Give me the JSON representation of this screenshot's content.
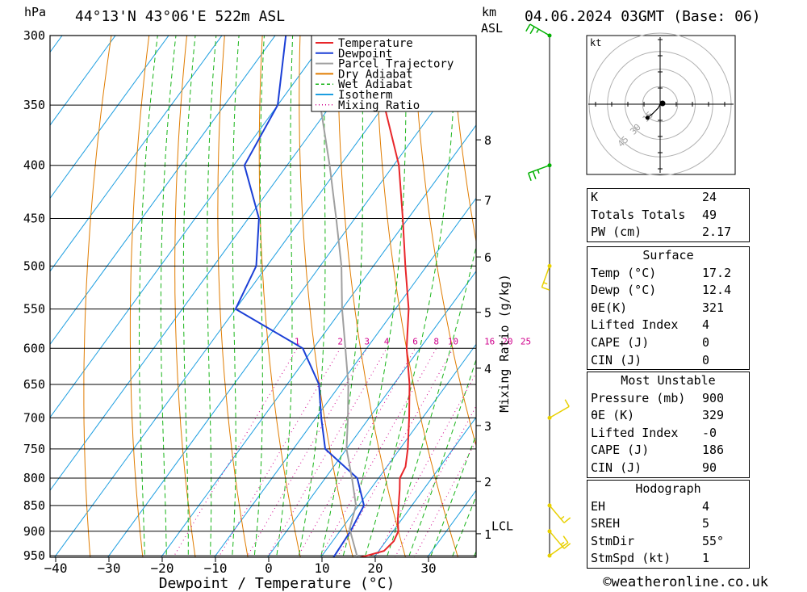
{
  "header": {
    "hpa_label": "hPa",
    "location": "44°13'N 43°06'E 522m ASL",
    "km_label": "km",
    "asl_label": "ASL",
    "datetime": "04.06.2024 03GMT (Base: 06)"
  },
  "footer": {
    "copyright": "©weatheronline.co.uk"
  },
  "hodograph": {
    "unit_label": "kt",
    "ring_labels": [
      "15",
      "30",
      "45"
    ]
  },
  "chart_data": {
    "type": "line",
    "title": "44°13'N 43°06'E 522m ASL",
    "xlabel": "Dewpoint / Temperature (°C)",
    "ylabel": "hPa",
    "right_axis_label": "Mixing Ratio (g/kg)",
    "xlim": [
      -40,
      40
    ],
    "ylim": [
      950,
      300
    ],
    "y_scale": "log",
    "x_ticks": [
      -40,
      -30,
      -20,
      -10,
      0,
      10,
      20,
      30
    ],
    "pressure_levels": [
      300,
      350,
      400,
      450,
      500,
      550,
      600,
      650,
      700,
      750,
      800,
      850,
      900,
      950
    ],
    "height_km_ticks": [
      {
        "km": "1",
        "p": 905
      },
      {
        "km": "2",
        "p": 806
      },
      {
        "km": "3",
        "p": 712
      },
      {
        "km": "4",
        "p": 627
      },
      {
        "km": "5",
        "p": 554
      },
      {
        "km": "6",
        "p": 490
      },
      {
        "km": "7",
        "p": 432
      },
      {
        "km": "8",
        "p": 378
      }
    ],
    "lcl": {
      "label": "LCL",
      "p": 895
    },
    "mixing_ratio_labels": [
      "1",
      "2",
      "3",
      "4",
      "6",
      "8",
      "10",
      "16",
      "20",
      "25"
    ],
    "mixing_ratio_values": [
      1,
      2,
      3,
      4,
      6,
      8,
      10,
      16,
      20,
      25
    ],
    "grid": true,
    "legend": {
      "placement": "top",
      "entries": [
        {
          "name": "Temperature",
          "color": "#e8262a",
          "style": "solid"
        },
        {
          "name": "Dewpoint",
          "color": "#1b3fd6",
          "style": "solid"
        },
        {
          "name": "Parcel Trajectory",
          "color": "#a0a0a0",
          "style": "solid"
        },
        {
          "name": "Dry Adiabat",
          "color": "#e07c00",
          "style": "solid"
        },
        {
          "name": "Wet Adiabat",
          "color": "#18b418",
          "style": "dashed"
        },
        {
          "name": "Isotherm",
          "color": "#1c9ee0",
          "style": "solid"
        },
        {
          "name": "Mixing Ratio",
          "color": "#d0008c",
          "style": "dotted"
        }
      ]
    },
    "series": [
      {
        "name": "Temperature",
        "color": "#e8262a",
        "points": [
          [
            955,
            17.2
          ],
          [
            940,
            21
          ],
          [
            920,
            21.5
          ],
          [
            900,
            21
          ],
          [
            880,
            19.5
          ],
          [
            850,
            17.5
          ],
          [
            820,
            15.5
          ],
          [
            800,
            14
          ],
          [
            780,
            13.5
          ],
          [
            750,
            11.5
          ],
          [
            700,
            7.5
          ],
          [
            650,
            3
          ],
          [
            600,
            -2.5
          ],
          [
            550,
            -7.5
          ],
          [
            500,
            -14
          ],
          [
            450,
            -21
          ],
          [
            400,
            -29
          ],
          [
            350,
            -40
          ],
          [
            300,
            -52
          ]
        ]
      },
      {
        "name": "Dewpoint",
        "color": "#1b3fd6",
        "points": [
          [
            955,
            12.4
          ],
          [
            900,
            12
          ],
          [
            850,
            11
          ],
          [
            800,
            6
          ],
          [
            750,
            -4
          ],
          [
            700,
            -9
          ],
          [
            650,
            -14
          ],
          [
            600,
            -22
          ],
          [
            550,
            -40
          ],
          [
            500,
            -42
          ],
          [
            450,
            -48
          ],
          [
            400,
            -58
          ],
          [
            350,
            -60
          ],
          [
            300,
            -68
          ]
        ]
      },
      {
        "name": "Parcel Trajectory",
        "color": "#a0a0a0",
        "points": [
          [
            955,
            17
          ],
          [
            895,
            11.5
          ],
          [
            850,
            9.5
          ],
          [
            800,
            5
          ],
          [
            750,
            0
          ],
          [
            700,
            -4
          ],
          [
            650,
            -8.5
          ],
          [
            600,
            -14
          ],
          [
            550,
            -20
          ],
          [
            500,
            -26
          ],
          [
            450,
            -33.5
          ],
          [
            400,
            -42
          ],
          [
            350,
            -52
          ],
          [
            300,
            -63
          ]
        ]
      }
    ],
    "wind_barbs": [
      {
        "p": 300,
        "dir_deg": 300,
        "speed_kt": 15,
        "color": "#00b000"
      },
      {
        "p": 400,
        "dir_deg": 250,
        "speed_kt": 15,
        "color": "#00b000"
      },
      {
        "p": 500,
        "dir_deg": 200,
        "speed_kt": 5,
        "color": "#e8d000"
      },
      {
        "p": 700,
        "dir_deg": 60,
        "speed_kt": 10,
        "color": "#e8d000"
      },
      {
        "p": 850,
        "dir_deg": 140,
        "speed_kt": 5,
        "color": "#e8d000"
      },
      {
        "p": 900,
        "dir_deg": 140,
        "speed_kt": 5,
        "color": "#e8d000"
      },
      {
        "p": 950,
        "dir_deg": 55,
        "speed_kt": 10,
        "color": "#e8d000"
      }
    ],
    "hodograph_points": [
      [
        0,
        0
      ],
      [
        -2,
        -4
      ],
      [
        -8,
        -10
      ],
      [
        -13,
        -14
      ]
    ]
  },
  "indices": {
    "top": [
      {
        "label": "K",
        "value": "24"
      },
      {
        "label": "Totals Totals",
        "value": "49"
      },
      {
        "label": "PW (cm)",
        "value": "2.17"
      }
    ],
    "surface": {
      "title": "Surface",
      "rows": [
        {
          "label": "Temp (°C)",
          "value": "17.2"
        },
        {
          "label": "Dewp (°C)",
          "value": "12.4"
        },
        {
          "label": "θE(K)",
          "value": "321"
        },
        {
          "label": "Lifted Index",
          "value": "4"
        },
        {
          "label": "CAPE (J)",
          "value": "0"
        },
        {
          "label": "CIN (J)",
          "value": "0"
        }
      ]
    },
    "most_unstable": {
      "title": "Most Unstable",
      "rows": [
        {
          "label": "Pressure (mb)",
          "value": "900"
        },
        {
          "label": "θE (K)",
          "value": "329"
        },
        {
          "label": "Lifted Index",
          "value": "-0"
        },
        {
          "label": "CAPE (J)",
          "value": "186"
        },
        {
          "label": "CIN (J)",
          "value": "90"
        }
      ]
    },
    "hodograph": {
      "title": "Hodograph",
      "rows": [
        {
          "label": "EH",
          "value": "4"
        },
        {
          "label": "SREH",
          "value": "5"
        },
        {
          "label": "StmDir",
          "value": "55°"
        },
        {
          "label": "StmSpd (kt)",
          "value": "1"
        }
      ]
    }
  }
}
